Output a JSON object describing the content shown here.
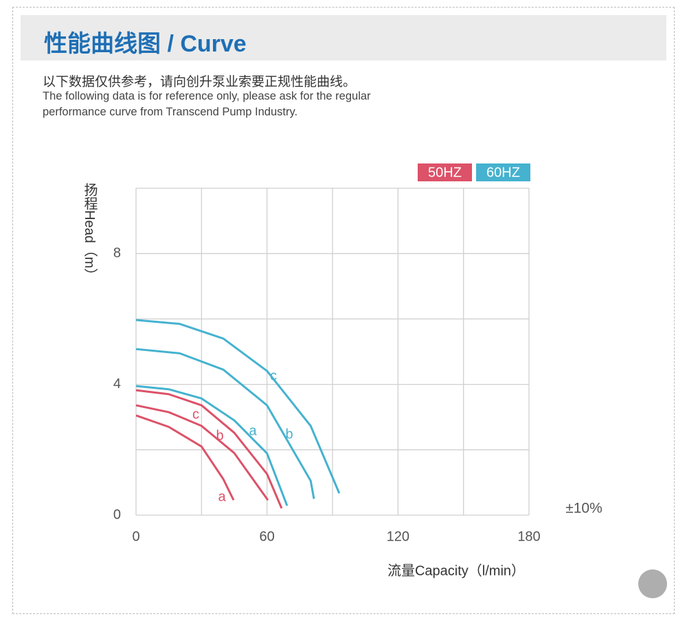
{
  "header": {
    "title": "性能曲线图 / Curve"
  },
  "intro": {
    "zh": "以下数据仅供参考，请向创升泵业索要正规性能曲线。",
    "en": [
      "The following data is for reference only, please ask for the regular",
      "performance curve from Transcend Pump Industry."
    ]
  },
  "chart_data": {
    "type": "line",
    "y_label": "扬程Head（m）",
    "x_label": "流量Capacity（l/min）",
    "note": "±10%",
    "legend": [
      {
        "name": "50HZ",
        "color": "#dc5268"
      },
      {
        "name": "60HZ",
        "color": "#45b2cf"
      }
    ],
    "xlim": [
      0,
      180
    ],
    "ylim": [
      0,
      10
    ],
    "xticks": [
      0,
      60,
      120,
      180
    ],
    "yticks": [
      0,
      4,
      8
    ],
    "xgrid": [
      0,
      30,
      60,
      90,
      120,
      150,
      180
    ],
    "ygrid": [
      0,
      2,
      4,
      6,
      8,
      10
    ],
    "series": [
      {
        "name": "a",
        "color": "#dc5268",
        "x": [
          0,
          15,
          30,
          40,
          44.7
        ],
        "values": [
          3.05,
          2.7,
          2.1,
          1.1,
          0.46
        ]
      },
      {
        "name": "b",
        "color": "#dc5268",
        "x": [
          0,
          15,
          30,
          45,
          60.4
        ],
        "values": [
          3.36,
          3.15,
          2.73,
          1.9,
          0.46
        ]
      },
      {
        "name": "c",
        "color": "#dc5268",
        "x": [
          0,
          15,
          30,
          45,
          60,
          66.7
        ],
        "values": [
          3.82,
          3.7,
          3.36,
          2.52,
          1.26,
          0.21
        ]
      },
      {
        "name": "a",
        "color": "#45b2cf",
        "x": [
          0,
          15,
          30,
          45,
          60,
          69.2
        ],
        "values": [
          3.95,
          3.85,
          3.57,
          2.9,
          1.89,
          0.29
        ]
      },
      {
        "name": "b",
        "color": "#45b2cf",
        "x": [
          0,
          20,
          40,
          60,
          80,
          81.5
        ],
        "values": [
          5.08,
          4.95,
          4.45,
          3.36,
          1.05,
          0.5
        ]
      },
      {
        "name": "c",
        "color": "#45b2cf",
        "x": [
          0,
          20,
          40,
          60,
          80,
          93.1
        ],
        "values": [
          5.97,
          5.85,
          5.4,
          4.41,
          2.73,
          0.67
        ]
      }
    ]
  }
}
